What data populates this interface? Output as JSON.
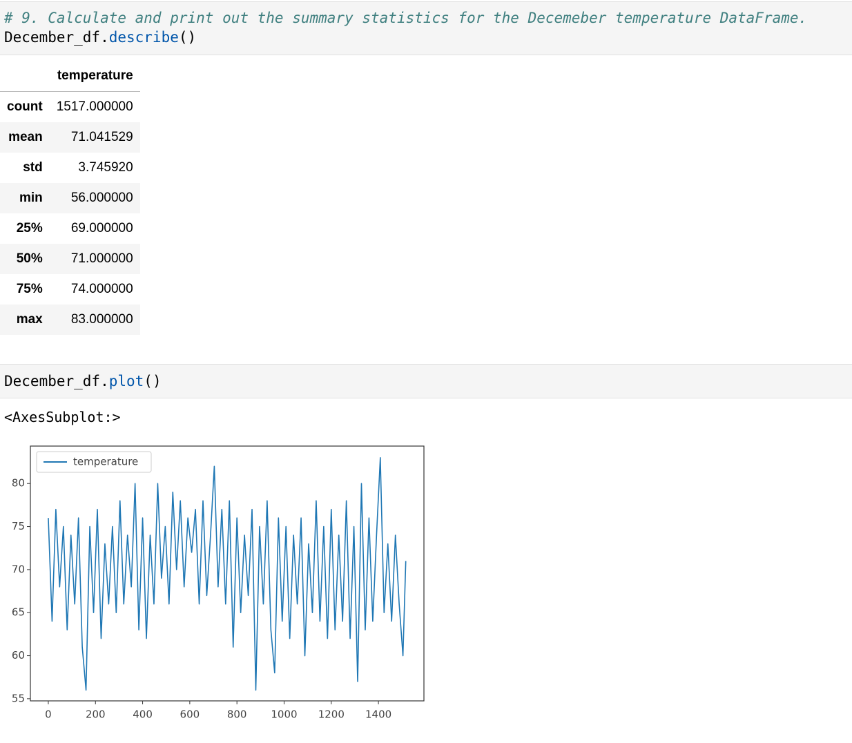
{
  "cells": [
    {
      "code": [
        "# 9. Calculate and print out the summary statistics for the Decemeber temperature DataFrame.",
        "December_df.",
        "describe",
        "()"
      ]
    },
    {
      "code": [
        "December_df.",
        "plot",
        "()"
      ]
    }
  ],
  "table": {
    "columns": [
      "temperature"
    ],
    "rows": [
      [
        "count",
        "1517.000000"
      ],
      [
        "mean",
        "71.041529"
      ],
      [
        "std",
        "3.745920"
      ],
      [
        "min",
        "56.000000"
      ],
      [
        "25%",
        "69.000000"
      ],
      [
        "50%",
        "71.000000"
      ],
      [
        "75%",
        "74.000000"
      ],
      [
        "max",
        "83.000000"
      ]
    ]
  },
  "output": "<AxesSubplot:>",
  "chart_data": {
    "type": "line",
    "x": [
      0,
      16,
      32,
      48,
      64,
      80,
      96,
      112,
      128,
      144,
      160,
      176,
      192,
      208,
      224,
      240,
      256,
      272,
      288,
      304,
      320,
      336,
      352,
      368,
      384,
      400,
      416,
      432,
      448,
      464,
      480,
      496,
      512,
      528,
      544,
      560,
      576,
      592,
      608,
      624,
      640,
      656,
      672,
      688,
      704,
      720,
      736,
      752,
      768,
      784,
      800,
      816,
      832,
      848,
      864,
      880,
      896,
      912,
      928,
      944,
      960,
      976,
      992,
      1008,
      1024,
      1040,
      1056,
      1072,
      1088,
      1104,
      1120,
      1136,
      1152,
      1168,
      1184,
      1200,
      1216,
      1232,
      1248,
      1264,
      1280,
      1296,
      1312,
      1328,
      1344,
      1360,
      1376,
      1392,
      1408,
      1424,
      1440,
      1456,
      1472,
      1488,
      1504,
      1516
    ],
    "series": [
      {
        "name": "temperature",
        "color": "#1f77b4",
        "values": [
          76,
          64,
          77,
          68,
          75,
          63,
          74,
          66,
          76,
          61,
          56,
          75,
          65,
          77,
          62,
          73,
          66,
          75,
          65,
          78,
          66,
          74,
          68,
          80,
          63,
          76,
          62,
          74,
          66,
          80,
          69,
          75,
          66,
          79,
          70,
          78,
          68,
          76,
          72,
          77,
          66,
          78,
          67,
          74,
          82,
          68,
          77,
          66,
          78,
          61,
          76,
          65,
          74,
          67,
          77,
          56,
          75,
          66,
          78,
          63,
          58,
          76,
          64,
          75,
          62,
          74,
          66,
          76,
          60,
          73,
          65,
          78,
          64,
          75,
          62,
          77,
          63,
          74,
          64,
          78,
          62,
          75,
          57,
          80,
          63,
          76,
          64,
          74,
          83,
          65,
          73,
          64,
          74,
          66,
          60,
          71
        ]
      }
    ],
    "xlim": [
      -76,
      1593
    ],
    "ylim": [
      54.75,
      84.35
    ],
    "xticks": [
      0,
      200,
      400,
      600,
      800,
      1000,
      1200,
      1400
    ],
    "yticks": [
      55,
      60,
      65,
      70,
      75,
      80
    ],
    "legend": "upper left"
  }
}
